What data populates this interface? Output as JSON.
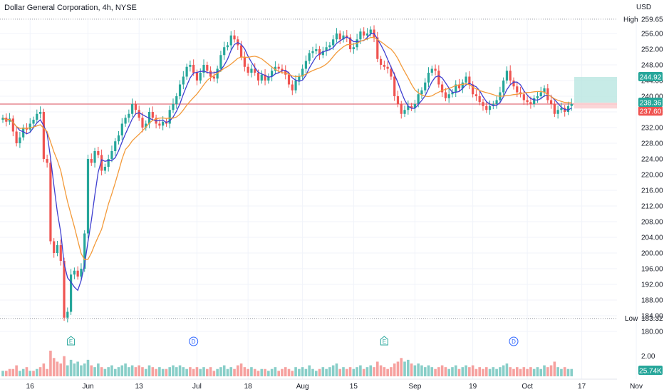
{
  "header": {
    "title": "Dollar General Corporation, 4h, NYSE",
    "currency": "USD"
  },
  "colors": {
    "up": "#26a69a",
    "down": "#ef5350",
    "ma_fast": "#3f3fd0",
    "ma_slow": "#f39a3a",
    "level_line": "#e0707a",
    "tp_zone": "#b9e6e1",
    "sl_zone": "#fbd0d3",
    "grid": "#f0f3fa",
    "axis_text": "#131722"
  },
  "chart_data": {
    "type": "candlestick",
    "ylim": [
      180,
      260
    ],
    "y_ticks": [
      "256.00",
      "252.00",
      "248.00",
      "244.00",
      "240.00",
      "236.00",
      "232.00",
      "228.00",
      "224.00",
      "220.00",
      "216.00",
      "212.00",
      "208.00",
      "204.00",
      "200.00",
      "196.00",
      "192.00",
      "188.00",
      "184.00",
      "180.00"
    ],
    "x_ticks": [
      "16",
      "Jun",
      "13",
      "Jul",
      "18",
      "Aug",
      "15",
      "Sep",
      "19",
      "Oct",
      "17",
      "Nov"
    ],
    "high": {
      "label": "High",
      "value": "259.65"
    },
    "low": {
      "label": "Low",
      "value": "183.32"
    },
    "horizontal_level": 238.0,
    "position": {
      "target": 244.92,
      "entry": 238.36,
      "stop": 237.6,
      "target_label": "244.92",
      "entry_label": "238.36",
      "stop_label": "237.60"
    },
    "events": [
      {
        "label": "E",
        "type": "earnings",
        "near": "24"
      },
      {
        "label": "D",
        "type": "dividend",
        "near": "Jul"
      },
      {
        "label": "E",
        "type": "earnings",
        "near": "Aug 29"
      },
      {
        "label": "D",
        "type": "dividend",
        "near": "Oct"
      }
    ],
    "volume": {
      "y_tick": "2.00",
      "last_label": "25.74K"
    },
    "price_path": [
      [
        234.5,
        0
      ],
      [
        233.5,
        1
      ],
      [
        234.3,
        2
      ],
      [
        231.0,
        3
      ],
      [
        228.0,
        4
      ],
      [
        229.5,
        5
      ],
      [
        232.0,
        6
      ],
      [
        231.5,
        7
      ],
      [
        233.0,
        8
      ],
      [
        234.0,
        9
      ],
      [
        235.5,
        10
      ],
      [
        236.0,
        11
      ],
      [
        224.0,
        12
      ],
      [
        223.0,
        13
      ],
      [
        203.0,
        14
      ],
      [
        200.0,
        15
      ],
      [
        202.0,
        16
      ],
      [
        198.0,
        17
      ],
      [
        183.5,
        18
      ],
      [
        185.0,
        19
      ],
      [
        194.5,
        20
      ],
      [
        195.5,
        21
      ],
      [
        194.0,
        22
      ],
      [
        196.0,
        23
      ],
      [
        205.0,
        24
      ],
      [
        224.0,
        25
      ],
      [
        223.0,
        26
      ],
      [
        226.0,
        27
      ],
      [
        225.0,
        28
      ],
      [
        221.0,
        29
      ],
      [
        222.0,
        30
      ],
      [
        224.0,
        31
      ],
      [
        226.0,
        32
      ],
      [
        228.5,
        33
      ],
      [
        230.0,
        34
      ],
      [
        233.0,
        35
      ],
      [
        234.5,
        36
      ],
      [
        235.5,
        37
      ],
      [
        238.0,
        38
      ],
      [
        236.5,
        39
      ],
      [
        234.5,
        40
      ],
      [
        232.0,
        41
      ],
      [
        233.0,
        42
      ],
      [
        236.0,
        43
      ],
      [
        234.5,
        44
      ],
      [
        233.0,
        45
      ],
      [
        232.5,
        46
      ],
      [
        233.5,
        47
      ],
      [
        233.0,
        48
      ],
      [
        236.5,
        49
      ],
      [
        238.0,
        50
      ],
      [
        240.0,
        51
      ],
      [
        243.0,
        52
      ],
      [
        245.0,
        53
      ],
      [
        247.5,
        54
      ],
      [
        248.0,
        55
      ],
      [
        246.0,
        56
      ],
      [
        244.0,
        57
      ],
      [
        246.0,
        58
      ],
      [
        248.0,
        59
      ],
      [
        246.5,
        60
      ],
      [
        245.0,
        61
      ],
      [
        244.5,
        62
      ],
      [
        247.0,
        63
      ],
      [
        250.5,
        64
      ],
      [
        252.5,
        65
      ],
      [
        253.0,
        66
      ],
      [
        255.5,
        67
      ],
      [
        254.5,
        68
      ],
      [
        253.0,
        69
      ],
      [
        250.0,
        70
      ],
      [
        247.5,
        71
      ],
      [
        246.0,
        72
      ],
      [
        247.0,
        73
      ],
      [
        246.0,
        74
      ],
      [
        244.0,
        75
      ],
      [
        245.5,
        76
      ],
      [
        244.0,
        77
      ],
      [
        245.0,
        78
      ],
      [
        246.5,
        79
      ],
      [
        247.5,
        80
      ],
      [
        247.0,
        81
      ],
      [
        246.5,
        82
      ],
      [
        245.5,
        83
      ],
      [
        243.0,
        84
      ],
      [
        241.5,
        85
      ],
      [
        244.0,
        86
      ],
      [
        245.0,
        87
      ],
      [
        247.0,
        88
      ],
      [
        249.0,
        89
      ],
      [
        251.0,
        90
      ],
      [
        251.5,
        91
      ],
      [
        252.0,
        92
      ],
      [
        250.5,
        93
      ],
      [
        251.5,
        94
      ],
      [
        252.5,
        95
      ],
      [
        253.0,
        96
      ],
      [
        254.5,
        97
      ],
      [
        256.0,
        98
      ],
      [
        254.5,
        99
      ],
      [
        255.5,
        100
      ],
      [
        255.0,
        101
      ],
      [
        252.0,
        102
      ],
      [
        252.5,
        103
      ],
      [
        254.5,
        104
      ],
      [
        256.5,
        105
      ],
      [
        255.5,
        106
      ],
      [
        256.0,
        107
      ],
      [
        257.0,
        108
      ],
      [
        255.0,
        109
      ],
      [
        249.5,
        110
      ],
      [
        248.0,
        111
      ],
      [
        247.5,
        112
      ],
      [
        247.0,
        113
      ],
      [
        245.0,
        114
      ],
      [
        240.0,
        115
      ],
      [
        238.0,
        116
      ],
      [
        235.5,
        117
      ],
      [
        236.5,
        118
      ],
      [
        237.5,
        119
      ],
      [
        237.0,
        120
      ],
      [
        238.0,
        121
      ],
      [
        240.5,
        122
      ],
      [
        241.5,
        123
      ],
      [
        243.5,
        124
      ],
      [
        246.0,
        125
      ],
      [
        247.0,
        126
      ],
      [
        246.5,
        127
      ],
      [
        243.0,
        128
      ],
      [
        241.0,
        129
      ],
      [
        239.5,
        130
      ],
      [
        240.5,
        131
      ],
      [
        241.0,
        132
      ],
      [
        243.0,
        133
      ],
      [
        242.0,
        134
      ],
      [
        243.5,
        135
      ],
      [
        245.0,
        136
      ],
      [
        243.0,
        137
      ],
      [
        240.5,
        138
      ],
      [
        240.0,
        139
      ],
      [
        238.5,
        140
      ],
      [
        237.5,
        141
      ],
      [
        236.5,
        142
      ],
      [
        237.5,
        143
      ],
      [
        238.0,
        144
      ],
      [
        239.0,
        145
      ],
      [
        241.0,
        146
      ],
      [
        244.0,
        147
      ],
      [
        246.5,
        148
      ],
      [
        244.0,
        149
      ],
      [
        242.5,
        150
      ],
      [
        241.0,
        151
      ],
      [
        240.5,
        152
      ],
      [
        239.0,
        153
      ],
      [
        238.5,
        154
      ],
      [
        238.0,
        155
      ],
      [
        239.5,
        156
      ],
      [
        240.0,
        157
      ],
      [
        241.0,
        158
      ],
      [
        242.0,
        159
      ],
      [
        239.0,
        160
      ],
      [
        238.0,
        161
      ],
      [
        235.5,
        162
      ],
      [
        236.5,
        163
      ],
      [
        237.0,
        164
      ],
      [
        236.0,
        165
      ],
      [
        237.5,
        166
      ],
      [
        238.0,
        167
      ]
    ],
    "volume_bars": [
      [
        3,
        "u"
      ],
      [
        3,
        "d"
      ],
      [
        4,
        "d"
      ],
      [
        4,
        "d"
      ],
      [
        6,
        "d"
      ],
      [
        3,
        "u"
      ],
      [
        4,
        "u"
      ],
      [
        5,
        "d"
      ],
      [
        3,
        "u"
      ],
      [
        3,
        "d"
      ],
      [
        4,
        "u"
      ],
      [
        5,
        "d"
      ],
      [
        7,
        "d"
      ],
      [
        4,
        "d"
      ],
      [
        14,
        "d"
      ],
      [
        10,
        "d"
      ],
      [
        8,
        "d"
      ],
      [
        7,
        "d"
      ],
      [
        11,
        "d"
      ],
      [
        6,
        "u"
      ],
      [
        9,
        "u"
      ],
      [
        7,
        "u"
      ],
      [
        8,
        "u"
      ],
      [
        6,
        "u"
      ],
      [
        7,
        "u"
      ],
      [
        9,
        "u"
      ],
      [
        6,
        "d"
      ],
      [
        5,
        "u"
      ],
      [
        7,
        "u"
      ],
      [
        5,
        "d"
      ],
      [
        4,
        "u"
      ],
      [
        5,
        "u"
      ],
      [
        6,
        "u"
      ],
      [
        4,
        "u"
      ],
      [
        5,
        "u"
      ],
      [
        6,
        "u"
      ],
      [
        7,
        "u"
      ],
      [
        5,
        "u"
      ],
      [
        6,
        "u"
      ],
      [
        5,
        "d"
      ],
      [
        6,
        "d"
      ],
      [
        5,
        "d"
      ],
      [
        4,
        "u"
      ],
      [
        6,
        "u"
      ],
      [
        5,
        "d"
      ],
      [
        4,
        "d"
      ],
      [
        5,
        "u"
      ],
      [
        4,
        "u"
      ],
      [
        4,
        "d"
      ],
      [
        5,
        "u"
      ],
      [
        6,
        "u"
      ],
      [
        5,
        "u"
      ],
      [
        6,
        "u"
      ],
      [
        5,
        "u"
      ],
      [
        4,
        "u"
      ],
      [
        5,
        "d"
      ],
      [
        4,
        "d"
      ],
      [
        5,
        "d"
      ],
      [
        4,
        "u"
      ],
      [
        5,
        "u"
      ],
      [
        4,
        "d"
      ],
      [
        5,
        "d"
      ],
      [
        3,
        "d"
      ],
      [
        4,
        "u"
      ],
      [
        5,
        "u"
      ],
      [
        6,
        "u"
      ],
      [
        4,
        "u"
      ],
      [
        5,
        "u"
      ],
      [
        4,
        "d"
      ],
      [
        6,
        "d"
      ],
      [
        7,
        "d"
      ],
      [
        5,
        "d"
      ],
      [
        4,
        "d"
      ],
      [
        5,
        "u"
      ],
      [
        4,
        "d"
      ],
      [
        3,
        "d"
      ],
      [
        4,
        "u"
      ],
      [
        4,
        "d"
      ],
      [
        3,
        "u"
      ],
      [
        4,
        "u"
      ],
      [
        5,
        "u"
      ],
      [
        3,
        "d"
      ],
      [
        4,
        "d"
      ],
      [
        5,
        "d"
      ],
      [
        4,
        "d"
      ],
      [
        3,
        "d"
      ],
      [
        5,
        "u"
      ],
      [
        4,
        "u"
      ],
      [
        5,
        "u"
      ],
      [
        4,
        "u"
      ],
      [
        6,
        "u"
      ],
      [
        4,
        "u"
      ],
      [
        3,
        "u"
      ],
      [
        4,
        "d"
      ],
      [
        5,
        "u"
      ],
      [
        4,
        "u"
      ],
      [
        5,
        "u"
      ],
      [
        6,
        "u"
      ],
      [
        7,
        "u"
      ],
      [
        4,
        "d"
      ],
      [
        5,
        "u"
      ],
      [
        4,
        "d"
      ],
      [
        5,
        "d"
      ],
      [
        4,
        "u"
      ],
      [
        5,
        "u"
      ],
      [
        6,
        "u"
      ],
      [
        4,
        "d"
      ],
      [
        5,
        "u"
      ],
      [
        6,
        "u"
      ],
      [
        5,
        "d"
      ],
      [
        8,
        "d"
      ],
      [
        6,
        "d"
      ],
      [
        5,
        "d"
      ],
      [
        4,
        "d"
      ],
      [
        5,
        "d"
      ],
      [
        7,
        "d"
      ],
      [
        8,
        "d"
      ],
      [
        10,
        "d"
      ],
      [
        8,
        "u"
      ],
      [
        9,
        "u"
      ],
      [
        7,
        "d"
      ],
      [
        6,
        "u"
      ],
      [
        7,
        "u"
      ],
      [
        6,
        "u"
      ],
      [
        5,
        "u"
      ],
      [
        6,
        "u"
      ],
      [
        5,
        "u"
      ],
      [
        4,
        "d"
      ],
      [
        5,
        "d"
      ],
      [
        6,
        "d"
      ],
      [
        5,
        "d"
      ],
      [
        4,
        "u"
      ],
      [
        5,
        "u"
      ],
      [
        6,
        "u"
      ],
      [
        4,
        "d"
      ],
      [
        5,
        "u"
      ],
      [
        6,
        "u"
      ],
      [
        5,
        "d"
      ],
      [
        6,
        "d"
      ],
      [
        4,
        "d"
      ],
      [
        5,
        "d"
      ],
      [
        4,
        "d"
      ],
      [
        5,
        "d"
      ],
      [
        4,
        "u"
      ],
      [
        5,
        "u"
      ],
      [
        4,
        "u"
      ],
      [
        5,
        "u"
      ],
      [
        6,
        "u"
      ],
      [
        7,
        "u"
      ],
      [
        5,
        "d"
      ],
      [
        4,
        "d"
      ],
      [
        5,
        "d"
      ],
      [
        4,
        "d"
      ],
      [
        5,
        "d"
      ],
      [
        4,
        "d"
      ],
      [
        5,
        "d"
      ],
      [
        4,
        "u"
      ],
      [
        5,
        "u"
      ],
      [
        4,
        "u"
      ],
      [
        6,
        "u"
      ],
      [
        5,
        "d"
      ],
      [
        6,
        "d"
      ],
      [
        8,
        "d"
      ],
      [
        5,
        "u"
      ],
      [
        4,
        "u"
      ],
      [
        5,
        "d"
      ],
      [
        4,
        "u"
      ],
      [
        4,
        "u"
      ]
    ]
  }
}
